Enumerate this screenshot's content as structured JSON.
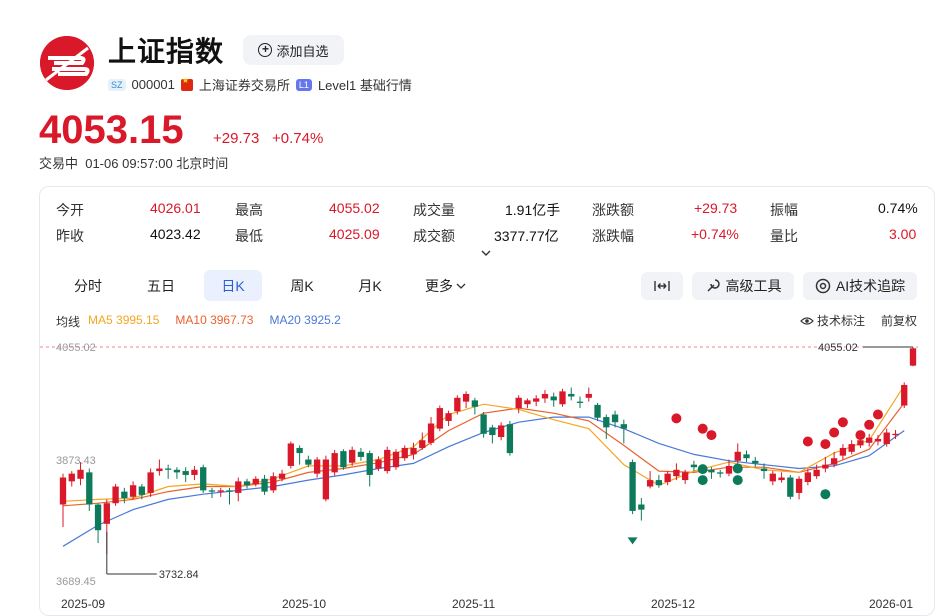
{
  "header": {
    "title": "上证指数",
    "add_watchlist_label": "添加自选",
    "code_tag": "SZ",
    "code": "000001",
    "exchange": "上海证券交易所",
    "level_tag": "L1",
    "level_label": "Level1 基础行情"
  },
  "quote": {
    "price": "4053.15",
    "change": "+29.73",
    "change_pct": "+0.74%",
    "status": "交易中  01-06 09:57:00 北京时间",
    "up_color": "#d9182a",
    "down_color": "#0e7a5c"
  },
  "stats": [
    {
      "label": "今开",
      "value": "4026.01",
      "color": "red"
    },
    {
      "label": "最高",
      "value": "4055.02",
      "color": "red"
    },
    {
      "label": "成交量",
      "value": "1.91亿手",
      "color": "black"
    },
    {
      "label": "涨跌额",
      "value": "+29.73",
      "color": "red"
    },
    {
      "label": "振幅",
      "value": "0.74%",
      "color": "black"
    },
    {
      "label": "昨收",
      "value": "4023.42",
      "color": "black"
    },
    {
      "label": "最低",
      "value": "4025.09",
      "color": "red"
    },
    {
      "label": "成交额",
      "value": "3377.77亿",
      "color": "black"
    },
    {
      "label": "涨跌幅",
      "value": "+0.74%",
      "color": "red"
    },
    {
      "label": "量比",
      "value": "3.00",
      "color": "red"
    }
  ],
  "tabs": [
    "分时",
    "五日",
    "日K",
    "周K",
    "月K",
    "更多"
  ],
  "active_tab": "日K",
  "tools": {
    "expand": "",
    "advanced": "高级工具",
    "ai": "AI技术追踪"
  },
  "ma_legend": {
    "label": "均线",
    "ma5": "MA5 3995.15",
    "ma10": "MA10 3967.73",
    "ma20": "MA20 3925.2",
    "ma5_color": "#f5a623",
    "ma10_color": "#e8622c",
    "ma20_color": "#4a78d8"
  },
  "chart_options": {
    "tech_label": "技术标注",
    "adjust_label": "前复权"
  },
  "chart_data": {
    "type": "candlestick",
    "y_top_label": "4055.02",
    "y_mid_label": "3873.43",
    "y_bottom_label": "3689.45",
    "high_marker": "4055.02",
    "low_marker": "3732.84",
    "ylim": [
      3689.45,
      4055.02
    ],
    "x_labels": [
      "2025-09",
      "2025-10",
      "2025-11",
      "2025-12",
      "2026-01"
    ],
    "candles": [
      {
        "o": 3810,
        "c": 3852,
        "h": 3858,
        "l": 3775
      },
      {
        "o": 3846,
        "c": 3858,
        "h": 3862,
        "l": 3838
      },
      {
        "o": 3850,
        "c": 3864,
        "h": 3876,
        "l": 3840
      },
      {
        "o": 3860,
        "c": 3810,
        "h": 3866,
        "l": 3800
      },
      {
        "o": 3810,
        "c": 3770,
        "h": 3812,
        "l": 3750
      },
      {
        "o": 3780,
        "c": 3812,
        "h": 3818,
        "l": 3733
      },
      {
        "o": 3812,
        "c": 3838,
        "h": 3842,
        "l": 3808
      },
      {
        "o": 3830,
        "c": 3820,
        "h": 3836,
        "l": 3812
      },
      {
        "o": 3822,
        "c": 3840,
        "h": 3846,
        "l": 3818
      },
      {
        "o": 3838,
        "c": 3825,
        "h": 3842,
        "l": 3818
      },
      {
        "o": 3828,
        "c": 3860,
        "h": 3866,
        "l": 3822
      },
      {
        "o": 3862,
        "c": 3866,
        "h": 3880,
        "l": 3855
      },
      {
        "o": 3866,
        "c": 3864,
        "h": 3872,
        "l": 3850
      },
      {
        "o": 3864,
        "c": 3860,
        "h": 3868,
        "l": 3850
      },
      {
        "o": 3862,
        "c": 3856,
        "h": 3868,
        "l": 3845
      },
      {
        "o": 3856,
        "c": 3864,
        "h": 3870,
        "l": 3848
      },
      {
        "o": 3868,
        "c": 3832,
        "h": 3872,
        "l": 3828
      },
      {
        "o": 3832,
        "c": 3830,
        "h": 3836,
        "l": 3820
      },
      {
        "o": 3830,
        "c": 3832,
        "h": 3836,
        "l": 3822
      },
      {
        "o": 3832,
        "c": 3830,
        "h": 3836,
        "l": 3810
      },
      {
        "o": 3828,
        "c": 3846,
        "h": 3852,
        "l": 3815
      },
      {
        "o": 3846,
        "c": 3840,
        "h": 3850,
        "l": 3835
      },
      {
        "o": 3842,
        "c": 3850,
        "h": 3854,
        "l": 3838
      },
      {
        "o": 3850,
        "c": 3830,
        "h": 3856,
        "l": 3825
      },
      {
        "o": 3832,
        "c": 3854,
        "h": 3860,
        "l": 3828
      },
      {
        "o": 3850,
        "c": 3858,
        "h": 3864,
        "l": 3846
      },
      {
        "o": 3870,
        "c": 3905,
        "h": 3908,
        "l": 3866
      },
      {
        "o": 3898,
        "c": 3890,
        "h": 3902,
        "l": 3872
      },
      {
        "o": 3880,
        "c": 3872,
        "h": 3886,
        "l": 3868
      },
      {
        "o": 3858,
        "c": 3880,
        "h": 3884,
        "l": 3852
      },
      {
        "o": 3818,
        "c": 3880,
        "h": 3886,
        "l": 3815
      },
      {
        "o": 3860,
        "c": 3890,
        "h": 3895,
        "l": 3855
      },
      {
        "o": 3893,
        "c": 3868,
        "h": 3896,
        "l": 3864
      },
      {
        "o": 3875,
        "c": 3895,
        "h": 3900,
        "l": 3870
      },
      {
        "o": 3892,
        "c": 3884,
        "h": 3898,
        "l": 3878
      },
      {
        "o": 3890,
        "c": 3856,
        "h": 3894,
        "l": 3838
      },
      {
        "o": 3866,
        "c": 3880,
        "h": 3885,
        "l": 3862
      },
      {
        "o": 3862,
        "c": 3895,
        "h": 3900,
        "l": 3858
      },
      {
        "o": 3868,
        "c": 3892,
        "h": 3896,
        "l": 3864
      },
      {
        "o": 3882,
        "c": 3898,
        "h": 3902,
        "l": 3878
      },
      {
        "o": 3888,
        "c": 3898,
        "h": 3906,
        "l": 3880
      },
      {
        "o": 3898,
        "c": 3910,
        "h": 3922,
        "l": 3895
      },
      {
        "o": 3906,
        "c": 3936,
        "h": 3946,
        "l": 3902
      },
      {
        "o": 3928,
        "c": 3960,
        "h": 3964,
        "l": 3924
      },
      {
        "o": 3940,
        "c": 3952,
        "h": 3956,
        "l": 3932
      },
      {
        "o": 3955,
        "c": 3976,
        "h": 3980,
        "l": 3950
      },
      {
        "o": 3970,
        "c": 3982,
        "h": 3986,
        "l": 3960
      },
      {
        "o": 3972,
        "c": 3962,
        "h": 3976,
        "l": 3950
      },
      {
        "o": 3950,
        "c": 3920,
        "h": 3954,
        "l": 3914
      },
      {
        "o": 3930,
        "c": 3918,
        "h": 3934,
        "l": 3905
      },
      {
        "o": 3915,
        "c": 3933,
        "h": 3938,
        "l": 3910
      },
      {
        "o": 3935,
        "c": 3890,
        "h": 3940,
        "l": 3886
      },
      {
        "o": 3960,
        "c": 3976,
        "h": 3980,
        "l": 3952
      },
      {
        "o": 3966,
        "c": 3972,
        "h": 3975,
        "l": 3960
      },
      {
        "o": 3970,
        "c": 3975,
        "h": 3980,
        "l": 3963
      },
      {
        "o": 3975,
        "c": 3982,
        "h": 3988,
        "l": 3968
      },
      {
        "o": 3978,
        "c": 3972,
        "h": 3984,
        "l": 3962
      },
      {
        "o": 3966,
        "c": 3986,
        "h": 3990,
        "l": 3962
      },
      {
        "o": 3982,
        "c": 3978,
        "h": 3992,
        "l": 3972
      },
      {
        "o": 3970,
        "c": 3968,
        "h": 3978,
        "l": 3960
      },
      {
        "o": 3976,
        "c": 3982,
        "h": 3992,
        "l": 3970
      },
      {
        "o": 3965,
        "c": 3945,
        "h": 3968,
        "l": 3940
      },
      {
        "o": 3946,
        "c": 3930,
        "h": 3950,
        "l": 3912
      },
      {
        "o": 3950,
        "c": 3938,
        "h": 3956,
        "l": 3930
      },
      {
        "o": 3935,
        "c": 3928,
        "h": 3942,
        "l": 3905
      },
      {
        "o": 3876,
        "c": 3800,
        "h": 3880,
        "l": 3795
      },
      {
        "o": 3810,
        "c": 3802,
        "h": 3820,
        "l": 3785
      },
      {
        "o": 3838,
        "c": 3848,
        "h": 3862,
        "l": 3835
      },
      {
        "o": 3848,
        "c": 3840,
        "h": 3856,
        "l": 3836
      },
      {
        "o": 3845,
        "c": 3858,
        "h": 3862,
        "l": 3840
      },
      {
        "o": 3854,
        "c": 3864,
        "h": 3874,
        "l": 3848
      },
      {
        "o": 3848,
        "c": 3860,
        "h": 3864,
        "l": 3842
      },
      {
        "o": 3872,
        "c": 3868,
        "h": 3878,
        "l": 3862
      },
      {
        "o": 3866,
        "c": 3862,
        "h": 3872,
        "l": 3858
      },
      {
        "o": 3864,
        "c": 3860,
        "h": 3868,
        "l": 3850
      },
      {
        "o": 3860,
        "c": 3858,
        "h": 3864,
        "l": 3852
      },
      {
        "o": 3858,
        "c": 3870,
        "h": 3880,
        "l": 3854
      },
      {
        "o": 3878,
        "c": 3892,
        "h": 3905,
        "l": 3874
      },
      {
        "o": 3888,
        "c": 3882,
        "h": 3894,
        "l": 3876
      },
      {
        "o": 3878,
        "c": 3874,
        "h": 3884,
        "l": 3868
      },
      {
        "o": 3866,
        "c": 3862,
        "h": 3874,
        "l": 3850
      },
      {
        "o": 3846,
        "c": 3858,
        "h": 3862,
        "l": 3840
      },
      {
        "o": 3848,
        "c": 3852,
        "h": 3860,
        "l": 3844
      },
      {
        "o": 3852,
        "c": 3822,
        "h": 3856,
        "l": 3818
      },
      {
        "o": 3828,
        "c": 3850,
        "h": 3854,
        "l": 3818
      },
      {
        "o": 3845,
        "c": 3860,
        "h": 3866,
        "l": 3840
      },
      {
        "o": 3854,
        "c": 3864,
        "h": 3872,
        "l": 3850
      },
      {
        "o": 3866,
        "c": 3872,
        "h": 3884,
        "l": 3860
      },
      {
        "o": 3872,
        "c": 3882,
        "h": 3892,
        "l": 3868
      },
      {
        "o": 3886,
        "c": 3898,
        "h": 3904,
        "l": 3880
      },
      {
        "o": 3892,
        "c": 3904,
        "h": 3910,
        "l": 3888
      },
      {
        "o": 3902,
        "c": 3910,
        "h": 3915,
        "l": 3898
      },
      {
        "o": 3906,
        "c": 3914,
        "h": 3920,
        "l": 3900
      },
      {
        "o": 3908,
        "c": 3912,
        "h": 3918,
        "l": 3902
      },
      {
        "o": 3904,
        "c": 3922,
        "h": 3928,
        "l": 3900
      },
      {
        "o": 3918,
        "c": 3920,
        "h": 3926,
        "l": 3912
      },
      {
        "o": 3964,
        "c": 3996,
        "h": 4000,
        "l": 3960
      },
      {
        "o": 4026,
        "c": 4053,
        "h": 4055,
        "l": 4025
      }
    ],
    "ma5": [
      [
        0,
        3815
      ],
      [
        4,
        3818
      ],
      [
        8,
        3820
      ],
      [
        12,
        3838
      ],
      [
        16,
        3842
      ],
      [
        20,
        3838
      ],
      [
        24,
        3850
      ],
      [
        28,
        3870
      ],
      [
        32,
        3870
      ],
      [
        36,
        3880
      ],
      [
        40,
        3900
      ],
      [
        44,
        3950
      ],
      [
        48,
        3966
      ],
      [
        52,
        3958
      ],
      [
        56,
        3942
      ],
      [
        60,
        3928
      ],
      [
        64,
        3872
      ],
      [
        68,
        3840
      ],
      [
        72,
        3862
      ],
      [
        76,
        3876
      ],
      [
        80,
        3864
      ],
      [
        84,
        3860
      ],
      [
        88,
        3890
      ],
      [
        92,
        3910
      ],
      [
        96,
        3995
      ]
    ],
    "ma10": [
      [
        0,
        3808
      ],
      [
        4,
        3812
      ],
      [
        8,
        3818
      ],
      [
        12,
        3830
      ],
      [
        16,
        3838
      ],
      [
        20,
        3838
      ],
      [
        24,
        3845
      ],
      [
        28,
        3860
      ],
      [
        32,
        3866
      ],
      [
        36,
        3875
      ],
      [
        40,
        3888
      ],
      [
        44,
        3925
      ],
      [
        48,
        3952
      ],
      [
        52,
        3960
      ],
      [
        56,
        3952
      ],
      [
        60,
        3940
      ],
      [
        64,
        3902
      ],
      [
        68,
        3862
      ],
      [
        72,
        3860
      ],
      [
        76,
        3868
      ],
      [
        80,
        3868
      ],
      [
        84,
        3860
      ],
      [
        88,
        3874
      ],
      [
        92,
        3896
      ],
      [
        96,
        3968
      ]
    ],
    "ma20": [
      [
        0,
        3745
      ],
      [
        4,
        3778
      ],
      [
        8,
        3802
      ],
      [
        12,
        3818
      ],
      [
        16,
        3826
      ],
      [
        20,
        3832
      ],
      [
        24,
        3838
      ],
      [
        28,
        3848
      ],
      [
        32,
        3856
      ],
      [
        36,
        3866
      ],
      [
        40,
        3874
      ],
      [
        44,
        3900
      ],
      [
        48,
        3922
      ],
      [
        52,
        3938
      ],
      [
        56,
        3946
      ],
      [
        60,
        3946
      ],
      [
        64,
        3928
      ],
      [
        68,
        3905
      ],
      [
        72,
        3888
      ],
      [
        76,
        3878
      ],
      [
        80,
        3872
      ],
      [
        84,
        3866
      ],
      [
        88,
        3870
      ],
      [
        92,
        3886
      ],
      [
        96,
        3925
      ]
    ],
    "signals_red": [
      [
        70,
        3944
      ],
      [
        73,
        3928
      ],
      [
        74,
        3918
      ],
      [
        85,
        3908
      ],
      [
        87,
        3904
      ],
      [
        88,
        3922
      ],
      [
        89,
        3938
      ],
      [
        91,
        3918
      ],
      [
        92,
        3934
      ],
      [
        93,
        3950
      ]
    ],
    "signals_green": [
      [
        73,
        3865
      ],
      [
        73,
        3848
      ],
      [
        77,
        3866
      ],
      [
        77,
        3848
      ],
      [
        87,
        3826
      ]
    ],
    "down_arrow_index": 65
  }
}
